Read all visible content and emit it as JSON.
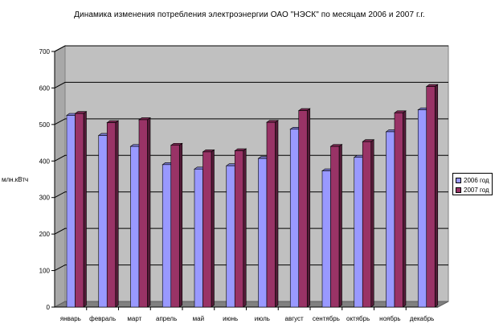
{
  "chart_data": {
    "type": "bar",
    "title": "Динамика изменения потребления электроэнергии ОАО \"НЭСК\" по месяцам 2006 и 2007 г.г.",
    "xlabel": "",
    "ylabel": "млн.кВтч",
    "categories": [
      "январь",
      "февраль",
      "март",
      "апрель",
      "май",
      "июнь",
      "июль",
      "август",
      "сентябрь",
      "октябрь",
      "ноябрь",
      "декабрь"
    ],
    "series": [
      {
        "name": "2006 год",
        "color": "#9999ff",
        "values": [
          525,
          470,
          440,
          390,
          378,
          387,
          407,
          487,
          373,
          410,
          480,
          540
        ]
      },
      {
        "name": "2007 год",
        "color": "#993366",
        "values": [
          530,
          505,
          513,
          443,
          425,
          428,
          506,
          538,
          440,
          453,
          532,
          604
        ]
      }
    ],
    "ylim": [
      0,
      700
    ],
    "yticks": [
      0,
      100,
      200,
      300,
      400,
      500,
      600,
      700
    ],
    "grid": true,
    "legend": "right"
  }
}
